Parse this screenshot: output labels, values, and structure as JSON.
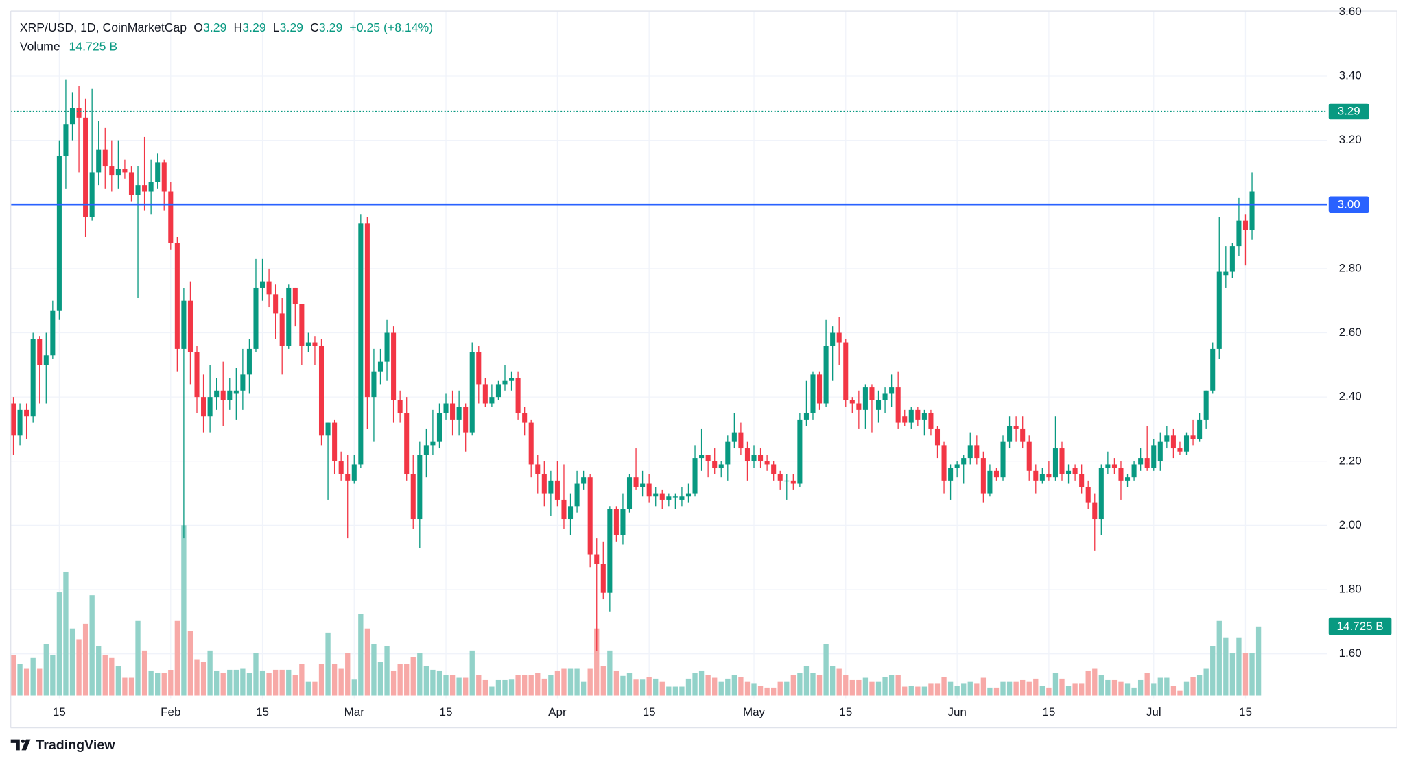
{
  "chart_data": {
    "type": "candlestick",
    "symbol": "XRP/USD, 1D, CoinMarketCap",
    "ohlc_keys": [
      "O",
      "H",
      "L",
      "C"
    ],
    "change": "+0.25 (+8.14%)",
    "volume_name": "Volume",
    "volume_label": "14.725 B",
    "brand": "TradingView",
    "up_color": "#089981",
    "down_color": "#f23645",
    "volume_up_color": "#92d2c9",
    "volume_down_color": "#f7a9a7",
    "grid": true,
    "ylim": [
      1.47,
      3.6
    ],
    "yticks": [
      {
        "value": 1.6,
        "label": "1.60"
      },
      {
        "value": 1.8,
        "label": "1.80"
      },
      {
        "value": 2,
        "label": "2.00"
      },
      {
        "value": 2.2,
        "label": "2.20"
      },
      {
        "value": 2.4,
        "label": "2.40"
      },
      {
        "value": 2.6,
        "label": "2.60"
      },
      {
        "value": 2.8,
        "label": "2.80"
      },
      {
        "value": 3,
        "label": "3.00"
      },
      {
        "value": 3.2,
        "label": "3.20"
      },
      {
        "value": 3.4,
        "label": "3.40"
      },
      {
        "value": 3.6,
        "label": "3.60"
      }
    ],
    "volume_lim": [
      0,
      146
    ],
    "hline": {
      "value": 3,
      "label": "3.00",
      "color": "#2962ff"
    },
    "categories": [
      null,
      null,
      null,
      null,
      null,
      null,
      null,
      "15",
      null,
      null,
      null,
      null,
      null,
      null,
      null,
      null,
      null,
      null,
      null,
      null,
      null,
      null,
      null,
      null,
      "Feb",
      null,
      null,
      null,
      null,
      null,
      null,
      null,
      null,
      null,
      null,
      null,
      null,
      null,
      "15",
      null,
      null,
      null,
      null,
      null,
      null,
      null,
      null,
      null,
      null,
      null,
      null,
      null,
      "Mar",
      null,
      null,
      null,
      null,
      null,
      null,
      null,
      null,
      null,
      null,
      null,
      null,
      null,
      "15",
      null,
      null,
      null,
      null,
      null,
      null,
      null,
      null,
      null,
      null,
      null,
      null,
      null,
      null,
      null,
      null,
      "Apr",
      null,
      null,
      null,
      null,
      null,
      null,
      null,
      null,
      null,
      null,
      null,
      null,
      null,
      "15",
      null,
      null,
      null,
      null,
      null,
      null,
      null,
      null,
      null,
      null,
      null,
      null,
      null,
      null,
      null,
      "May",
      null,
      null,
      null,
      null,
      null,
      null,
      null,
      null,
      null,
      null,
      null,
      null,
      null,
      "15",
      null,
      null,
      null,
      null,
      null,
      null,
      null,
      null,
      null,
      null,
      null,
      null,
      null,
      null,
      null,
      null,
      "Jun",
      null,
      null,
      null,
      null,
      null,
      null,
      null,
      null,
      null,
      null,
      null,
      null,
      null,
      "15",
      null,
      null,
      null,
      null,
      null,
      null,
      null,
      null,
      null,
      null,
      null,
      null,
      null,
      null,
      null,
      "Jul",
      null,
      null,
      null,
      null,
      null,
      null,
      null,
      null,
      null,
      null,
      null,
      null,
      null,
      "15",
      null,
      null
    ],
    "open": [
      2.38,
      2.28,
      2.36,
      2.34,
      2.58,
      2.5,
      2.53,
      2.67,
      3.15,
      3.25,
      3.3,
      3.27,
      2.96,
      3.1,
      3.17,
      3.12,
      3.09,
      3.11,
      3.1,
      3.03,
      3.06,
      3.04,
      3.07,
      3.13,
      3.04,
      2.88,
      2.55,
      2.7,
      2.54,
      2.4,
      2.34,
      2.4,
      2.42,
      2.39,
      2.41,
      2.42,
      2.47,
      2.55,
      2.74,
      2.76,
      2.72,
      2.66,
      2.56,
      2.74,
      2.69,
      2.56,
      2.57,
      2.56,
      2.28,
      2.32,
      2.2,
      2.16,
      2.14,
      2.19,
      2.94,
      2.4,
      2.48,
      2.51,
      2.6,
      2.39,
      2.35,
      2.16,
      2.02,
      2.22,
      2.25,
      2.26,
      2.35,
      2.38,
      2.33,
      2.37,
      2.29,
      2.54,
      2.44,
      2.38,
      2.4,
      2.44,
      2.45,
      2.46,
      2.35,
      2.32,
      2.19,
      2.16,
      2.1,
      2.14,
      2.08,
      2.02,
      2.06,
      2.13,
      2.15,
      1.91,
      1.88,
      1.79,
      2.05,
      1.97,
      2.05,
      2.15,
      2.12,
      2.13,
      2.09,
      2.1,
      2.08,
      2.09,
      2.08,
      2.09,
      2.1,
      2.21,
      2.22,
      2.2,
      2.18,
      2.19,
      2.26,
      2.29,
      2.24,
      2.2,
      2.22,
      2.2,
      2.19,
      2.16,
      2.14,
      2.14,
      2.13,
      2.33,
      2.35,
      2.47,
      2.38,
      2.56,
      2.6,
      2.57,
      2.39,
      2.38,
      2.36,
      2.43,
      2.36,
      2.39,
      2.41,
      2.43,
      2.34,
      2.32,
      2.36,
      2.33,
      2.35,
      2.3,
      2.25,
      2.14,
      2.18,
      2.19,
      2.21,
      2.25,
      2.21,
      2.1,
      2.17,
      2.15,
      2.26,
      2.31,
      2.3,
      2.26,
      2.17,
      2.14,
      2.16,
      2.15,
      2.24,
      2.16,
      2.18,
      2.16,
      2.12,
      2.07,
      2.02,
      2.18,
      2.19,
      2.18,
      2.14,
      2.15,
      2.19,
      2.21,
      2.18,
      2.2,
      2.26,
      2.28,
      2.24,
      2.23,
      2.28,
      2.27,
      2.33,
      2.42,
      2.55,
      2.78,
      2.79,
      2.87,
      2.95,
      2.92,
      3.29
    ],
    "high": [
      2.4,
      2.38,
      2.38,
      2.6,
      2.59,
      2.6,
      2.7,
      3.2,
      3.39,
      3.35,
      3.37,
      3.33,
      3.36,
      3.26,
      3.24,
      3.2,
      3.2,
      3.14,
      3.12,
      3.12,
      3.21,
      3.14,
      3.16,
      3.14,
      3.07,
      2.9,
      2.74,
      2.76,
      2.56,
      2.47,
      2.5,
      2.46,
      2.51,
      2.46,
      2.49,
      2.55,
      2.58,
      2.83,
      2.83,
      2.8,
      2.75,
      2.71,
      2.75,
      2.74,
      2.69,
      2.6,
      2.59,
      2.58,
      2.32,
      2.33,
      2.23,
      2.22,
      2.22,
      2.97,
      2.96,
      2.55,
      2.55,
      2.64,
      2.62,
      2.42,
      2.4,
      2.22,
      2.26,
      2.3,
      2.36,
      2.38,
      2.41,
      2.42,
      2.42,
      2.38,
      2.57,
      2.56,
      2.46,
      2.44,
      2.45,
      2.5,
      2.48,
      2.48,
      2.37,
      2.33,
      2.22,
      2.2,
      2.17,
      2.2,
      2.19,
      2.1,
      2.17,
      2.17,
      2.16,
      1.96,
      1.95,
      2.06,
      2.06,
      2.1,
      2.16,
      2.24,
      2.17,
      2.16,
      2.12,
      2.11,
      2.1,
      2.1,
      2.12,
      2.13,
      2.25,
      2.3,
      2.22,
      2.24,
      2.2,
      2.28,
      2.35,
      2.32,
      2.26,
      2.25,
      2.24,
      2.22,
      2.2,
      2.17,
      2.16,
      2.16,
      2.35,
      2.45,
      2.48,
      2.48,
      2.64,
      2.62,
      2.65,
      2.58,
      2.4,
      2.42,
      2.44,
      2.44,
      2.42,
      2.43,
      2.47,
      2.48,
      2.36,
      2.37,
      2.37,
      2.36,
      2.36,
      2.31,
      2.26,
      2.19,
      2.2,
      2.22,
      2.29,
      2.28,
      2.23,
      2.19,
      2.18,
      2.28,
      2.34,
      2.34,
      2.34,
      2.28,
      2.19,
      2.18,
      2.2,
      2.34,
      2.26,
      2.19,
      2.19,
      2.19,
      2.14,
      2.1,
      2.19,
      2.23,
      2.21,
      2.2,
      2.16,
      2.2,
      2.24,
      2.31,
      2.27,
      2.29,
      2.31,
      2.3,
      2.26,
      2.29,
      2.33,
      2.35,
      2.42,
      2.57,
      2.96,
      2.87,
      2.88,
      3.02,
      2.97,
      3.1,
      3.29
    ],
    "low": [
      2.22,
      2.25,
      2.27,
      2.32,
      2.38,
      2.38,
      2.52,
      2.64,
      3.05,
      3.2,
      3.1,
      2.9,
      2.95,
      3.06,
      3.05,
      3.04,
      3.05,
      3.08,
      3.01,
      2.71,
      2.98,
      2.97,
      3.05,
      2.98,
      2.86,
      2.48,
      1.96,
      2.44,
      2.35,
      2.29,
      2.29,
      2.36,
      2.31,
      2.36,
      2.33,
      2.36,
      2.41,
      2.54,
      2.7,
      2.68,
      2.58,
      2.47,
      2.55,
      2.62,
      2.5,
      2.54,
      2.5,
      2.25,
      2.08,
      2.16,
      2.14,
      1.96,
      2.13,
      2.18,
      2.3,
      2.26,
      2.44,
      2.45,
      2.32,
      2.32,
      2.14,
      1.99,
      1.93,
      2.15,
      2.22,
      2.24,
      2.33,
      2.28,
      2.28,
      2.23,
      2.28,
      2.38,
      2.37,
      2.37,
      2.39,
      2.42,
      2.42,
      2.33,
      2.28,
      2.15,
      2.1,
      2.06,
      2.03,
      2.06,
      1.99,
      1.97,
      2.04,
      2.11,
      1.87,
      1.61,
      1.77,
      1.73,
      1.95,
      1.94,
      2.04,
      2.11,
      2.09,
      2.07,
      2.06,
      2.05,
      2.06,
      2.05,
      2.06,
      2.07,
      2.09,
      2.17,
      2.15,
      2.16,
      2.15,
      2.14,
      2.24,
      2.22,
      2.14,
      2.18,
      2.18,
      2.17,
      2.14,
      2.11,
      2.08,
      2.11,
      2.12,
      2.31,
      2.33,
      2.36,
      2.37,
      2.45,
      2.5,
      2.37,
      2.35,
      2.3,
      2.3,
      2.29,
      2.32,
      2.35,
      2.37,
      2.3,
      2.31,
      2.3,
      2.31,
      2.28,
      2.28,
      2.21,
      2.1,
      2.08,
      2.15,
      2.13,
      2.19,
      2.19,
      2.07,
      2.09,
      2.14,
      2.14,
      2.24,
      2.26,
      2.24,
      2.14,
      2.1,
      2.13,
      2.14,
      2.14,
      2.14,
      2.13,
      2.14,
      2.1,
      2.05,
      1.92,
      1.97,
      2.16,
      2.16,
      2.08,
      2.12,
      2.14,
      2.17,
      2.17,
      2.17,
      2.17,
      2.24,
      2.21,
      2.22,
      2.22,
      2.25,
      2.26,
      2.3,
      2.41,
      2.52,
      2.74,
      2.77,
      2.84,
      2.81,
      2.89,
      3.29
    ],
    "close": [
      2.28,
      2.36,
      2.34,
      2.58,
      2.5,
      2.53,
      2.67,
      3.15,
      3.25,
      3.3,
      3.27,
      2.96,
      3.1,
      3.17,
      3.12,
      3.09,
      3.11,
      3.1,
      3.03,
      3.06,
      3.04,
      3.07,
      3.13,
      3.04,
      2.88,
      2.55,
      2.7,
      2.54,
      2.4,
      2.34,
      2.4,
      2.42,
      2.39,
      2.42,
      2.42,
      2.47,
      2.55,
      2.74,
      2.76,
      2.72,
      2.66,
      2.56,
      2.74,
      2.69,
      2.56,
      2.57,
      2.56,
      2.28,
      2.32,
      2.2,
      2.16,
      2.14,
      2.19,
      2.94,
      2.4,
      2.48,
      2.51,
      2.6,
      2.39,
      2.35,
      2.16,
      2.02,
      2.22,
      2.25,
      2.26,
      2.35,
      2.38,
      2.33,
      2.37,
      2.29,
      2.54,
      2.44,
      2.38,
      2.4,
      2.44,
      2.45,
      2.46,
      2.35,
      2.32,
      2.19,
      2.16,
      2.1,
      2.14,
      2.08,
      2.02,
      2.06,
      2.13,
      2.15,
      1.91,
      1.88,
      1.79,
      2.05,
      1.97,
      2.05,
      2.15,
      2.12,
      2.13,
      2.09,
      2.1,
      2.08,
      2.09,
      2.09,
      2.09,
      2.1,
      2.21,
      2.22,
      2.2,
      2.18,
      2.19,
      2.26,
      2.29,
      2.24,
      2.2,
      2.22,
      2.2,
      2.19,
      2.16,
      2.14,
      2.14,
      2.13,
      2.33,
      2.35,
      2.47,
      2.38,
      2.56,
      2.6,
      2.57,
      2.39,
      2.38,
      2.36,
      2.43,
      2.39,
      2.39,
      2.41,
      2.43,
      2.32,
      2.32,
      2.36,
      2.33,
      2.35,
      2.3,
      2.25,
      2.14,
      2.18,
      2.19,
      2.21,
      2.25,
      2.21,
      2.1,
      2.17,
      2.15,
      2.26,
      2.31,
      2.3,
      2.26,
      2.17,
      2.14,
      2.16,
      2.15,
      2.24,
      2.16,
      2.17,
      2.16,
      2.12,
      2.07,
      2.02,
      2.18,
      2.19,
      2.18,
      2.14,
      2.15,
      2.19,
      2.21,
      2.18,
      2.25,
      2.26,
      2.28,
      2.24,
      2.23,
      2.28,
      2.27,
      2.33,
      2.42,
      2.55,
      2.79,
      2.79,
      2.87,
      2.95,
      2.92,
      3.04,
      3.29
    ],
    "volume": [
      8.6,
      6.7,
      5.7,
      8.0,
      5.7,
      10.9,
      8.6,
      22.0,
      26.4,
      14.3,
      12.0,
      15.3,
      21.4,
      10.5,
      8.6,
      8.0,
      6.3,
      3.8,
      3.8,
      15.9,
      9.6,
      5.2,
      4.8,
      4.8,
      5.4,
      15.9,
      36.3,
      13.8,
      7.6,
      7.1,
      9.6,
      5.2,
      4.8,
      5.5,
      5.5,
      5.7,
      4.8,
      9.0,
      5.2,
      4.8,
      5.5,
      5.5,
      5.5,
      4.4,
      6.7,
      2.9,
      2.9,
      6.7,
      13.4,
      6.7,
      5.7,
      9.0,
      3.4,
      17.4,
      14.3,
      10.9,
      7.1,
      10.5,
      5.2,
      6.7,
      6.7,
      8.2,
      9.0,
      6.3,
      5.5,
      5.2,
      4.4,
      4.4,
      3.8,
      3.8,
      9.6,
      4.4,
      3.3,
      1.9,
      3.3,
      3.3,
      3.4,
      4.4,
      4.4,
      4.4,
      4.8,
      3.6,
      4.4,
      5.2,
      5.7,
      5.7,
      5.7,
      2.9,
      5.7,
      14.3,
      6.3,
      9.6,
      5.2,
      4.2,
      4.8,
      3.4,
      3.4,
      4.0,
      3.6,
      2.9,
      1.9,
      1.9,
      1.9,
      3.6,
      4.8,
      5.2,
      4.4,
      3.8,
      2.9,
      3.6,
      4.4,
      4.0,
      2.9,
      2.5,
      2.1,
      1.7,
      1.7,
      2.9,
      2.9,
      4.4,
      4.8,
      6.3,
      4.8,
      4.4,
      10.9,
      6.3,
      5.7,
      4.4,
      3.3,
      3.3,
      3.8,
      2.9,
      2.9,
      4.0,
      4.4,
      4.4,
      1.9,
      2.1,
      1.9,
      1.9,
      2.5,
      2.5,
      4.0,
      2.9,
      2.1,
      2.5,
      2.9,
      2.5,
      3.8,
      1.7,
      1.7,
      2.9,
      2.9,
      2.9,
      3.3,
      2.9,
      3.6,
      2.1,
      1.7,
      4.8,
      3.6,
      2.1,
      2.5,
      2.5,
      5.2,
      5.7,
      4.4,
      3.3,
      3.3,
      2.9,
      2.5,
      1.7,
      3.3,
      4.8,
      2.5,
      3.8,
      3.8,
      2.1,
      1.0,
      2.9,
      4.0,
      4.4,
      5.7,
      10.5,
      15.9,
      12.4,
      9.0,
      12.4,
      9.0,
      9.0,
      14.725
    ]
  }
}
